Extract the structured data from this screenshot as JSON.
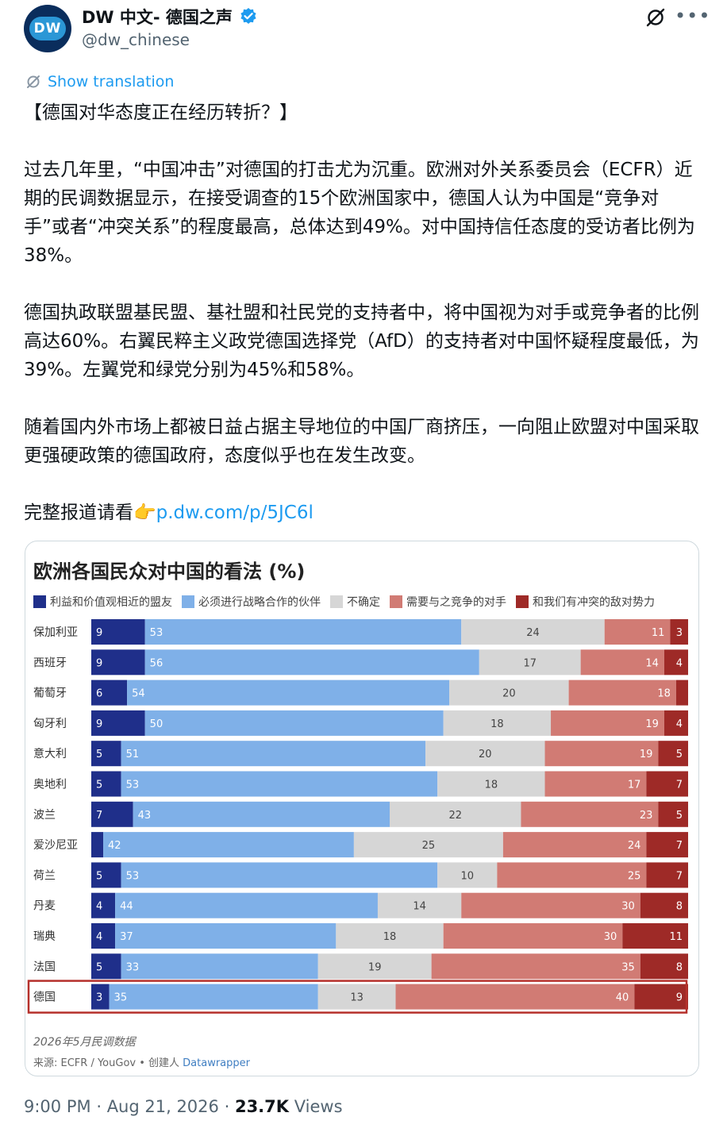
{
  "author": {
    "display_name": "DW 中文- 德国之声",
    "handle": "@dw_chinese",
    "avatar_text": "DW"
  },
  "show_translation": "Show translation",
  "tweet": {
    "paragraphs": [
      "【德国对华态度正在经历转折？】",
      "过去几年里，“中国冲击”对德国的打击尤为沉重。欧洲对外关系委员会（ECFR）近期的民调数据显示，在接受调查的15个欧洲国家中，德国人认为中国是“竞争对手”或者“冲突关系”的程度最高，总体达到49%。对中国持信任态度的受访者比例为38%。",
      "德国执政联盟基民盟、基社盟和社民党的支持者中，将中国视为对手或竞争者的比例高达60%。右翼民粹主义政党德国选择党（AfD）的支持者对中国怀疑程度最低，为39%。左翼党和绿党分别为45%和58%。",
      "随着国内外市场上都被日益占据主导地位的中国厂商挤压，一向阻止欧盟对中国采取更强硬政策的德国政府，态度似乎也在发生改变。"
    ],
    "link_prefix": "完整报道请看👉",
    "link_text": "p.dw.com/p/5JC6l"
  },
  "chart_data": {
    "type": "bar",
    "orientation": "horizontal",
    "stacked": true,
    "normalized_percent": true,
    "title": "欧洲各国民众对中国的看法 (%)",
    "categories": [
      "保加利亚",
      "西班牙",
      "葡萄牙",
      "匈牙利",
      "意大利",
      "奥地利",
      "波兰",
      "爱沙尼亚",
      "荷兰",
      "丹麦",
      "瑞典",
      "法国",
      "德国"
    ],
    "series": [
      {
        "name": "利益和价值观相近的盟友",
        "color": "#1f2f8a",
        "values": [
          9,
          9,
          6,
          9,
          5,
          5,
          7,
          2,
          5,
          4,
          4,
          5,
          3
        ]
      },
      {
        "name": "必须进行战略合作的伙伴",
        "color": "#7fb0e8",
        "values": [
          53,
          56,
          54,
          50,
          51,
          53,
          43,
          42,
          53,
          44,
          37,
          33,
          35
        ]
      },
      {
        "name": "不确定",
        "color": "#d6d6d6",
        "values": [
          24,
          17,
          20,
          18,
          20,
          18,
          22,
          25,
          10,
          14,
          18,
          19,
          13
        ]
      },
      {
        "name": "需要与之竞争的对手",
        "color": "#d17b74",
        "values": [
          11,
          14,
          18,
          19,
          19,
          17,
          23,
          24,
          25,
          30,
          30,
          35,
          40
        ]
      },
      {
        "name": "和我们有冲突的敌对势力",
        "color": "#9e2a27",
        "values": [
          3,
          4,
          2,
          4,
          5,
          7,
          5,
          7,
          7,
          8,
          11,
          8,
          9
        ]
      }
    ],
    "hidden_labels": [
      [],
      [],
      [
        [
          2,
          4
        ]
      ],
      [],
      [],
      [],
      [],
      [
        [
          7,
          0
        ]
      ],
      [],
      [],
      [],
      [],
      []
    ],
    "highlight_category": "德国",
    "highlight_color": "#b5302b",
    "footnote": "2026年5月民调数据",
    "source_prefix": "来源: ECFR / YouGov • 创建人 ",
    "source_tool": "Datawrapper"
  },
  "meta": {
    "time": "9:00 PM",
    "date": "Aug 21, 2026",
    "views_count": "23.7K",
    "views_label": "Views",
    "separator": "·"
  }
}
